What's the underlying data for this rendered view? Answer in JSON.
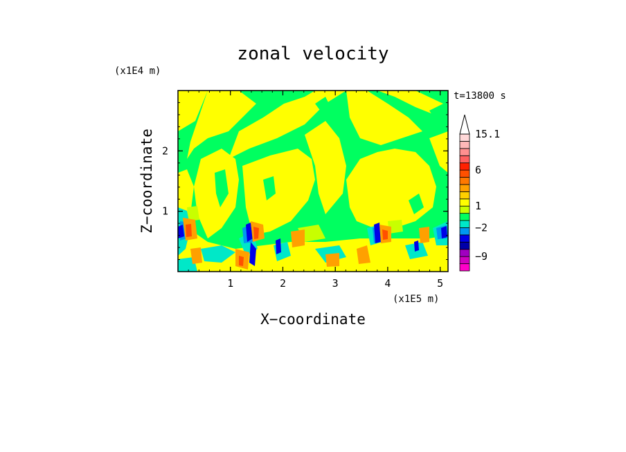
{
  "chart_data": {
    "type": "heatmap",
    "title": "zonal velocity",
    "xlabel": "X−coordinate",
    "ylabel": "Z−coordinate",
    "x_unit": "(x1E5 m)",
    "y_unit": "(x1E4 m)",
    "time_label": "t=13800 s",
    "xlim": [
      0,
      5.15
    ],
    "ylim": [
      0,
      3.0
    ],
    "x_ticks": [
      1,
      2,
      3,
      4,
      5
    ],
    "y_ticks": [
      1,
      2
    ],
    "colorbar": {
      "levels": [
        -13,
        -11,
        -9,
        -7,
        -5,
        -3,
        -2,
        -1,
        0,
        1,
        2,
        3,
        4,
        5,
        6,
        8,
        10,
        12,
        14,
        15.1,
        17
      ],
      "colors": [
        "#ff00c8",
        "#d000c0",
        "#a000c0",
        "#0000a8",
        "#0000e8",
        "#0098f0",
        "#00e8c8",
        "#00ff60",
        "#c8ff00",
        "#ffff00",
        "#ffd000",
        "#ffa000",
        "#ff7800",
        "#ff5000",
        "#ff2000",
        "#ff6060",
        "#ff9090",
        "#ffb8b8",
        "#ffd8d8",
        "#ffffff"
      ],
      "labels": [
        "15.1",
        "6",
        "1",
        "−2",
        "−9"
      ],
      "label_values": [
        15.1,
        6,
        1,
        -2,
        -9
      ]
    },
    "field_description": "predominantly 0 to 1 (green) and 1 to 2 (yellow) bands; strong negative (blue) and positive (orange/red) values near the surface"
  }
}
